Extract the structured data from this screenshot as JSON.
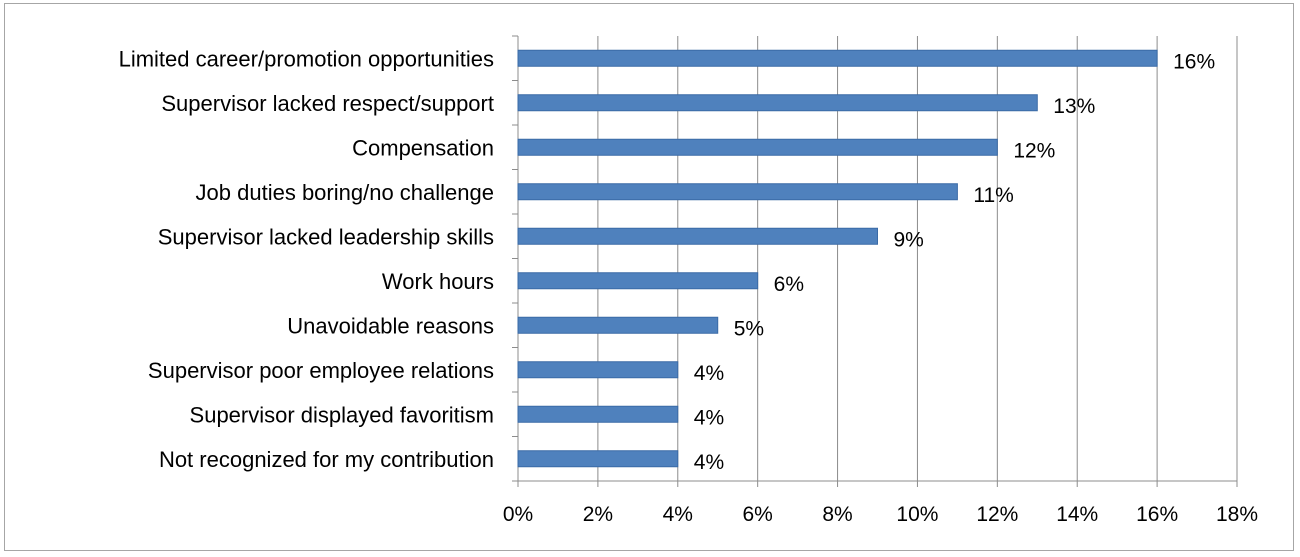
{
  "chart_data": {
    "type": "bar",
    "orientation": "horizontal",
    "title": "",
    "xlabel": "",
    "ylabel": "",
    "categories": [
      "Limited career/promotion opportunities",
      "Supervisor lacked respect/support",
      "Compensation",
      "Job duties boring/no challenge",
      "Supervisor lacked leadership skills",
      "Work hours",
      "Unavoidable reasons",
      "Supervisor poor employee relations",
      "Supervisor displayed favoritism",
      "Not recognized for my contribution"
    ],
    "values": [
      16,
      13,
      12,
      11,
      9,
      6,
      5,
      4,
      4,
      4
    ],
    "value_labels": [
      "16%",
      "13%",
      "12%",
      "11%",
      "9%",
      "6%",
      "5%",
      "4%",
      "4%",
      "4%"
    ],
    "xlim": [
      0,
      18
    ],
    "xticks": [
      0,
      2,
      4,
      6,
      8,
      10,
      12,
      14,
      16,
      18
    ],
    "xtick_labels": [
      "0%",
      "2%",
      "4%",
      "6%",
      "8%",
      "10%",
      "12%",
      "14%",
      "16%",
      "18%"
    ],
    "grid": "vertical",
    "legend": "none",
    "bar_color": "#4f81bd",
    "bar_edge_color": "#3a6aa6",
    "grid_color": "#8c8c8c",
    "axis_color": "#8c8c8c"
  }
}
